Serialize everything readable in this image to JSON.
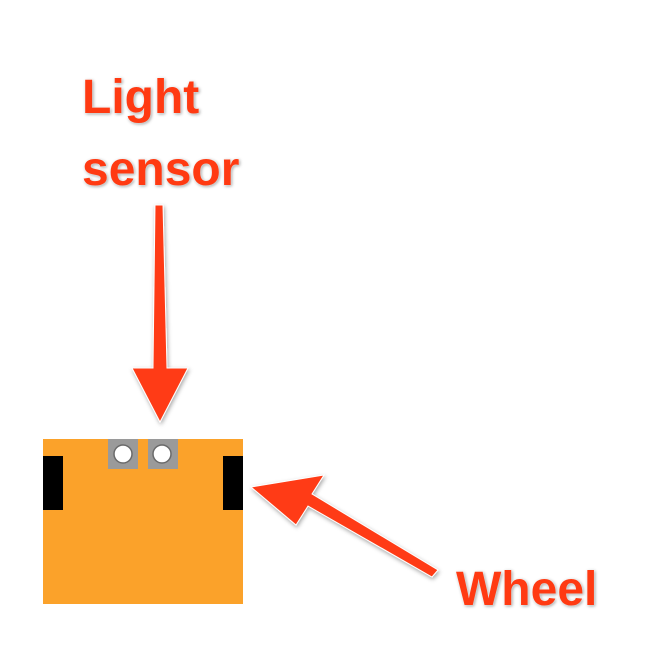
{
  "labels": {
    "light_sensor_line1": "Light",
    "light_sensor_line2": "sensor",
    "wheel": "Wheel"
  },
  "colors": {
    "robot_body": "#fba22a",
    "wheel": "#000000",
    "sensor_housing": "#9a9a9a",
    "sensor_lens": "#ffffff",
    "annotation": "#ff3a12",
    "background": "#ffffff"
  }
}
